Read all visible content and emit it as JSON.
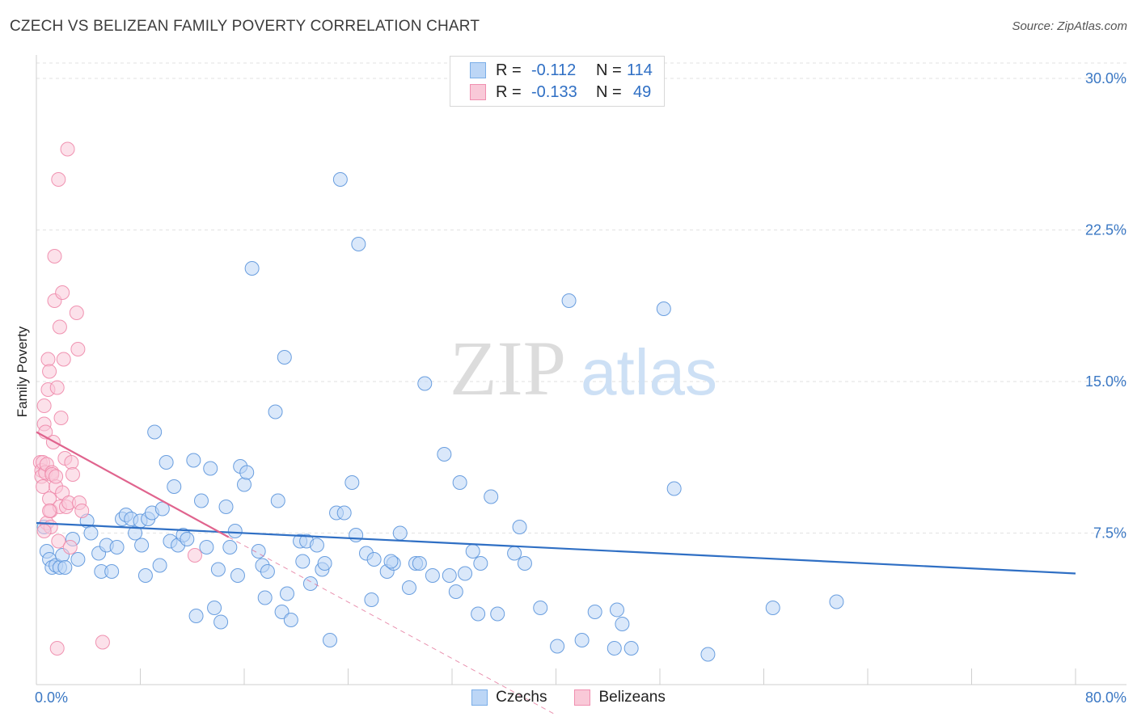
{
  "title": "CZECH VS BELIZEAN FAMILY POVERTY CORRELATION CHART",
  "source": "Source: ZipAtlas.com",
  "watermark": {
    "zip": "ZIP",
    "atlas": "atlas"
  },
  "legend": {
    "rows": [
      {
        "series": "czechs",
        "r_label": "R =",
        "r_value": "-0.112",
        "n_label": "N =",
        "n_value": "114",
        "color": "#7aaee8",
        "fill": "#bcd6f6"
      },
      {
        "series": "belizeans",
        "r_label": "R =",
        "r_value": "-0.133",
        "n_label": "N =",
        "n_value": "49",
        "color": "#f08fb0",
        "fill": "#f9c9d8"
      }
    ]
  },
  "chart_data": {
    "type": "scatter",
    "xlabel": "",
    "ylabel": "Family Poverty",
    "xlim": [
      0,
      80
    ],
    "ylim": [
      0,
      30
    ],
    "x_tick_labels": [
      "0.0%",
      "80.0%"
    ],
    "y_ticks": [
      {
        "value": 7.5,
        "label": "7.5%"
      },
      {
        "value": 15,
        "label": "15.0%"
      },
      {
        "value": 22.5,
        "label": "22.5%"
      },
      {
        "value": 30,
        "label": "30.0%"
      }
    ],
    "grid": "horizontal dashed",
    "legend_placement": "top-center and bottom",
    "series": [
      {
        "name": "Czechs",
        "color": "#5b95dc",
        "fill": "#bcd6f6",
        "trend": {
          "x": [
            0,
            80
          ],
          "y": [
            8.0,
            5.5
          ],
          "color": "#2f6fc4"
        },
        "points": [
          [
            0.6,
            7.8
          ],
          [
            0.8,
            6.6
          ],
          [
            1.0,
            6.2
          ],
          [
            1.2,
            5.8
          ],
          [
            1.5,
            5.9
          ],
          [
            1.8,
            5.8
          ],
          [
            2.0,
            6.4
          ],
          [
            2.2,
            5.8
          ],
          [
            2.8,
            7.2
          ],
          [
            3.2,
            6.2
          ],
          [
            3.9,
            8.1
          ],
          [
            4.2,
            7.5
          ],
          [
            4.8,
            6.5
          ],
          [
            5.0,
            5.6
          ],
          [
            5.4,
            6.9
          ],
          [
            5.8,
            5.6
          ],
          [
            6.2,
            6.8
          ],
          [
            6.6,
            8.2
          ],
          [
            6.9,
            8.4
          ],
          [
            7.3,
            8.2
          ],
          [
            7.6,
            7.5
          ],
          [
            8.0,
            8.1
          ],
          [
            8.1,
            6.9
          ],
          [
            8.4,
            5.4
          ],
          [
            8.6,
            8.2
          ],
          [
            8.9,
            8.5
          ],
          [
            9.1,
            12.5
          ],
          [
            9.5,
            5.9
          ],
          [
            9.7,
            8.7
          ],
          [
            10.0,
            11.0
          ],
          [
            10.3,
            7.1
          ],
          [
            10.6,
            9.8
          ],
          [
            10.9,
            6.9
          ],
          [
            11.3,
            7.4
          ],
          [
            11.6,
            7.2
          ],
          [
            12.1,
            11.1
          ],
          [
            12.3,
            3.4
          ],
          [
            12.7,
            9.1
          ],
          [
            13.1,
            6.8
          ],
          [
            13.4,
            10.7
          ],
          [
            13.7,
            3.8
          ],
          [
            14.0,
            5.7
          ],
          [
            14.2,
            3.1
          ],
          [
            14.6,
            8.8
          ],
          [
            14.9,
            6.8
          ],
          [
            15.3,
            7.6
          ],
          [
            15.5,
            5.4
          ],
          [
            15.7,
            10.8
          ],
          [
            16.0,
            9.9
          ],
          [
            16.2,
            10.5
          ],
          [
            16.6,
            20.6
          ],
          [
            17.1,
            6.6
          ],
          [
            17.4,
            5.9
          ],
          [
            17.6,
            4.3
          ],
          [
            17.8,
            5.6
          ],
          [
            18.4,
            13.5
          ],
          [
            18.6,
            9.1
          ],
          [
            18.9,
            3.6
          ],
          [
            19.1,
            16.2
          ],
          [
            19.3,
            4.5
          ],
          [
            19.6,
            3.2
          ],
          [
            20.3,
            7.1
          ],
          [
            20.5,
            6.1
          ],
          [
            20.8,
            7.1
          ],
          [
            21.1,
            5.0
          ],
          [
            21.6,
            6.9
          ],
          [
            22.0,
            5.7
          ],
          [
            22.2,
            6.0
          ],
          [
            22.6,
            2.2
          ],
          [
            23.1,
            8.5
          ],
          [
            23.4,
            25.0
          ],
          [
            23.7,
            8.5
          ],
          [
            24.3,
            10.0
          ],
          [
            24.8,
            21.8
          ],
          [
            24.6,
            7.4
          ],
          [
            25.4,
            6.5
          ],
          [
            25.8,
            4.2
          ],
          [
            27.0,
            5.6
          ],
          [
            27.5,
            6.0
          ],
          [
            28.0,
            7.5
          ],
          [
            28.7,
            4.8
          ],
          [
            29.2,
            6.0
          ],
          [
            29.5,
            6.0
          ],
          [
            29.9,
            14.9
          ],
          [
            30.5,
            5.4
          ],
          [
            31.4,
            11.4
          ],
          [
            31.8,
            5.4
          ],
          [
            32.3,
            4.6
          ],
          [
            32.6,
            10.0
          ],
          [
            33.6,
            6.6
          ],
          [
            33.0,
            5.5
          ],
          [
            34.0,
            3.5
          ],
          [
            34.2,
            6.0
          ],
          [
            35.0,
            9.3
          ],
          [
            35.5,
            3.5
          ],
          [
            36.8,
            6.5
          ],
          [
            37.2,
            7.8
          ],
          [
            37.6,
            6.0
          ],
          [
            38.8,
            3.8
          ],
          [
            40.1,
            1.9
          ],
          [
            41.0,
            19.0
          ],
          [
            42.0,
            2.2
          ],
          [
            43.0,
            3.6
          ],
          [
            44.5,
            1.8
          ],
          [
            44.7,
            3.7
          ],
          [
            45.1,
            3.0
          ],
          [
            45.8,
            1.8
          ],
          [
            48.3,
            18.6
          ],
          [
            49.1,
            9.7
          ],
          [
            51.7,
            1.5
          ],
          [
            56.7,
            3.8
          ],
          [
            61.6,
            4.1
          ],
          [
            26.0,
            6.2
          ],
          [
            27.3,
            6.1
          ]
        ]
      },
      {
        "name": "Belizeans",
        "color": "#ee88aa",
        "fill": "#f9c9d8",
        "trend": {
          "x": [
            0,
            14.8
          ],
          "y": [
            12.5,
            7.3
          ],
          "color": "#e0648e"
        },
        "trend_extension": {
          "x": [
            14.8,
            40
          ],
          "y": [
            7.3,
            -1.5
          ]
        },
        "points": [
          [
            0.3,
            11.0
          ],
          [
            0.4,
            10.6
          ],
          [
            0.4,
            10.3
          ],
          [
            0.5,
            9.8
          ],
          [
            0.5,
            11.0
          ],
          [
            0.6,
            13.8
          ],
          [
            0.6,
            12.9
          ],
          [
            0.7,
            12.5
          ],
          [
            0.7,
            10.5
          ],
          [
            0.8,
            10.9
          ],
          [
            0.8,
            8.0
          ],
          [
            0.9,
            14.6
          ],
          [
            0.9,
            16.1
          ],
          [
            1.0,
            15.5
          ],
          [
            1.0,
            9.2
          ],
          [
            1.1,
            8.6
          ],
          [
            1.1,
            7.8
          ],
          [
            1.2,
            10.5
          ],
          [
            1.2,
            10.4
          ],
          [
            1.3,
            12.0
          ],
          [
            1.4,
            19.0
          ],
          [
            1.4,
            21.2
          ],
          [
            1.5,
            9.8
          ],
          [
            1.5,
            10.3
          ],
          [
            1.6,
            14.7
          ],
          [
            1.7,
            25.0
          ],
          [
            1.7,
            7.1
          ],
          [
            1.8,
            8.8
          ],
          [
            1.8,
            17.7
          ],
          [
            1.9,
            13.2
          ],
          [
            2.0,
            19.4
          ],
          [
            2.0,
            9.5
          ],
          [
            2.1,
            16.1
          ],
          [
            2.2,
            11.2
          ],
          [
            2.3,
            8.8
          ],
          [
            2.4,
            26.5
          ],
          [
            2.5,
            9.0
          ],
          [
            2.6,
            6.8
          ],
          [
            2.7,
            11.0
          ],
          [
            2.8,
            10.4
          ],
          [
            3.1,
            18.4
          ],
          [
            3.2,
            16.6
          ],
          [
            3.3,
            9.0
          ],
          [
            3.5,
            8.6
          ],
          [
            1.6,
            1.8
          ],
          [
            5.1,
            2.1
          ],
          [
            12.2,
            6.4
          ],
          [
            0.6,
            7.6
          ],
          [
            1.0,
            8.6
          ]
        ]
      }
    ]
  }
}
